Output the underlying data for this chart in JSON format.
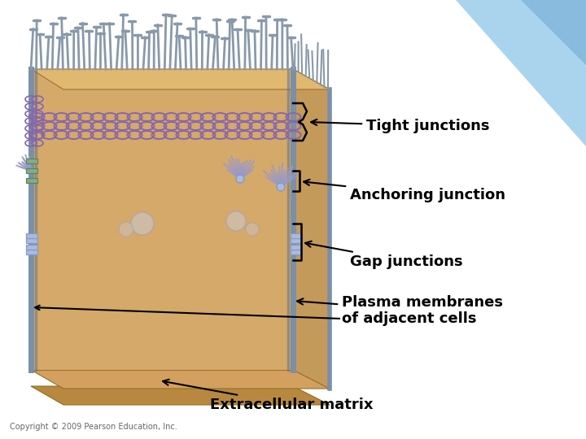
{
  "background_color": "#ffffff",
  "cell_body_color": "#d4a96a",
  "cell_body_dark": "#c49a5a",
  "cell_body_light": "#e0b870",
  "membrane_color": "#7a8fa8",
  "membrane_dark": "#5a6f88",
  "tight_junction_color": "#8866aa",
  "gap_junction_color": "#8899cc",
  "actin_color": "#9999cc",
  "top_cilia_color": "#8899aa",
  "ecm_color": "#c4945a",
  "blue_bg_color": "#aaccee",
  "labels": {
    "tight_junctions": "Tight junctions",
    "anchoring_junction": "Anchoring junction",
    "gap_junctions": "Gap junctions",
    "plasma_membranes": "Plasma membranes\nof adjacent cells",
    "extracellular_matrix": "Extracellular matrix",
    "copyright": "Copyright © 2009 Pearson Education, Inc."
  },
  "label_fontsize": 13,
  "small_fontsize": 7
}
